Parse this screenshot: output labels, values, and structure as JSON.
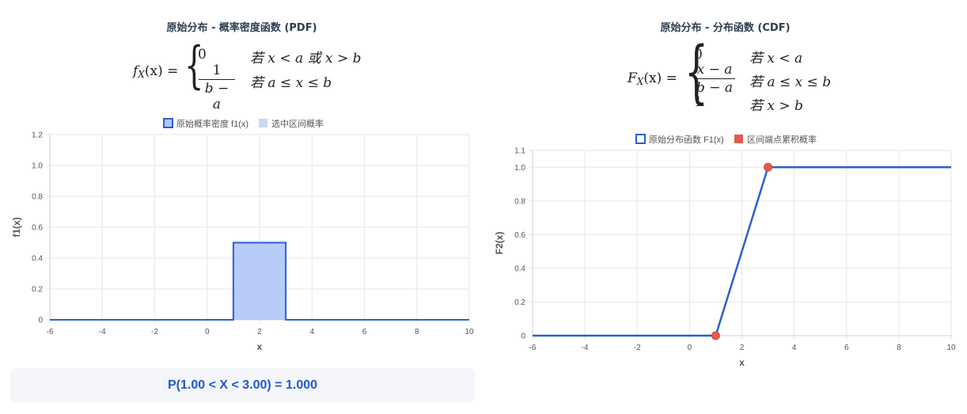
{
  "pdf_panel": {
    "title": "原始分布 - 概率密度函数 (PDF)",
    "formula": {
      "lhs": "f",
      "lhs_sub": "X",
      "lhs_arg": "(x) =",
      "case1_value": "0",
      "case1_cond": "若 x < a 或 x > b",
      "case2_num": "1",
      "case2_den": "b − a",
      "case2_cond": "若 a ≤ x ≤ b"
    },
    "probability_text": "P(1.00 < X < 3.00) = 1.000"
  },
  "cdf_panel": {
    "title": "原始分布 - 分布函数 (CDF)",
    "formula": {
      "lhs": "F",
      "lhs_sub": "X",
      "lhs_arg": "(x) =",
      "case1_value": "0",
      "case1_cond": "若 x < a",
      "case2_num": "x − a",
      "case2_den": "b − a",
      "case2_cond": "若 a ≤ x ≤ b",
      "case3_value": "1",
      "case3_cond": "若 x > b"
    }
  },
  "colors": {
    "line": "#2a5fd6",
    "fill": "#b3c8f6",
    "selected_fill": "#c9d8f7",
    "point": "#e45b4c",
    "grid": "#e6e6e6"
  },
  "chart_data": [
    {
      "type": "area",
      "xlabel": "x",
      "ylabel": "f1(x)",
      "xlim": [
        -6,
        10
      ],
      "ylim": [
        0,
        1.2
      ],
      "x_ticks": [
        "-6",
        "-4",
        "-2",
        "0",
        "2",
        "4",
        "6",
        "8",
        "10"
      ],
      "y_ticks": [
        "0",
        "0.2",
        "0.4",
        "0.6",
        "0.8",
        "1.0",
        "1.2"
      ],
      "legend": [
        "原始概率密度 f1(x)",
        "选中区间概率"
      ],
      "legend_position": "top",
      "grid": true,
      "series": [
        {
          "name": "原始概率密度 f1(x)",
          "points": [
            [
              -6,
              0
            ],
            [
              1,
              0
            ],
            [
              1,
              0.5
            ],
            [
              3,
              0.5
            ],
            [
              3,
              0
            ],
            [
              10,
              0
            ]
          ]
        },
        {
          "name": "选中区间概率",
          "interval": [
            1,
            3
          ],
          "value": 0.5
        }
      ]
    },
    {
      "type": "line",
      "xlabel": "x",
      "ylabel": "F2(x)",
      "xlim": [
        -6,
        10
      ],
      "ylim": [
        0,
        1.1
      ],
      "x_ticks": [
        "-6",
        "-4",
        "-2",
        "0",
        "2",
        "4",
        "6",
        "8",
        "10"
      ],
      "y_ticks": [
        "0",
        "0.2",
        "0.4",
        "0.6",
        "0.8",
        "1.0",
        "1.1"
      ],
      "legend": [
        "原始分布函数 F1(x)",
        "区间端点累积概率"
      ],
      "legend_position": "top",
      "grid": true,
      "series": [
        {
          "name": "原始分布函数 F1(x)",
          "points": [
            [
              -6,
              0
            ],
            [
              1,
              0
            ],
            [
              3,
              1
            ],
            [
              10,
              1
            ]
          ]
        },
        {
          "name": "区间端点累积概率",
          "points": [
            [
              1,
              0
            ],
            [
              3,
              1
            ]
          ]
        }
      ]
    }
  ]
}
